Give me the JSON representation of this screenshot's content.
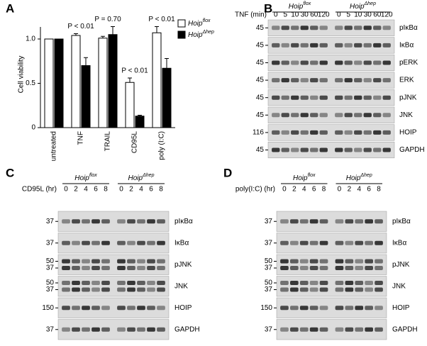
{
  "chart_data": {
    "type": "bar",
    "panel": "A",
    "y_label": "Cell viability",
    "categories": [
      "untreated",
      "TNF",
      "TRAIL",
      "CD95L",
      "poly (I:C)"
    ],
    "series": [
      {
        "name": "Hoip",
        "name_sup": "flox",
        "color": "#ffffff",
        "values": [
          1.0,
          1.04,
          1.01,
          0.51,
          1.07
        ],
        "errors": [
          null,
          0.02,
          0.02,
          0.05,
          0.07
        ]
      },
      {
        "name": "Hoip",
        "name_sup": "Δhep",
        "color": "#000000",
        "values": [
          1.0,
          0.7,
          1.05,
          0.13,
          0.67
        ],
        "errors": [
          null,
          0.09,
          0.09,
          0.01,
          0.11
        ]
      }
    ],
    "annotations": [
      null,
      "P < 0.01",
      "P = 0.70",
      "P < 0.01",
      "P < 0.01"
    ],
    "ylim": [
      0,
      1.2
    ],
    "yticks": [
      0,
      0.5,
      {
        "value": 1,
        "label": "1.0"
      }
    ]
  },
  "blots": [
    {
      "label": "B",
      "treatment": "TNF (min)",
      "groups": [
        {
          "name": "Hoip",
          "sup": "flox",
          "lanes": [
            "0",
            "5",
            "10",
            "30",
            "60",
            "120"
          ]
        },
        {
          "name": "Hoip",
          "sup": "Δhep",
          "lanes": [
            "0",
            "5",
            "10",
            "30",
            "60",
            "120"
          ]
        }
      ],
      "rows": [
        {
          "label": "pIκBα",
          "markers": [
            "45"
          ]
        },
        {
          "label": "IκBα",
          "markers": [
            "45"
          ]
        },
        {
          "label": "pERK",
          "markers": [
            "45"
          ]
        },
        {
          "label": "ERK",
          "markers": [
            "45"
          ]
        },
        {
          "label": "pJNK",
          "markers": [
            "45"
          ]
        },
        {
          "label": "JNK",
          "markers": [
            "45"
          ]
        },
        {
          "label": "HOIP",
          "markers": [
            "116"
          ]
        },
        {
          "label": "GAPDH",
          "markers": [
            "45"
          ]
        }
      ]
    },
    {
      "label": "C",
      "treatment": "CD95L (hr)",
      "groups": [
        {
          "name": "Hoip",
          "sup": "flox",
          "lanes": [
            "0",
            "2",
            "4",
            "6",
            "8"
          ]
        },
        {
          "name": "Hoip",
          "sup": "Δhep",
          "lanes": [
            "0",
            "2",
            "4",
            "6",
            "8"
          ]
        }
      ],
      "rows": [
        {
          "label": "pIκBα",
          "markers": [
            "37"
          ]
        },
        {
          "label": "IκBα",
          "markers": [
            "37"
          ]
        },
        {
          "label": "pJNK",
          "markers": [
            "50",
            "37"
          ]
        },
        {
          "label": "JNK",
          "markers": [
            "50",
            "37"
          ]
        },
        {
          "label": "HOIP",
          "markers": [
            "150"
          ]
        },
        {
          "label": "GAPDH",
          "markers": [
            "37"
          ]
        }
      ]
    },
    {
      "label": "D",
      "treatment": "poly(I:C) (hr)",
      "groups": [
        {
          "name": "Hoip",
          "sup": "flox",
          "lanes": [
            "0",
            "2",
            "4",
            "6",
            "8"
          ]
        },
        {
          "name": "Hoip",
          "sup": "Δhep",
          "lanes": [
            "0",
            "2",
            "4",
            "6",
            "8"
          ]
        }
      ],
      "rows": [
        {
          "label": "pIκBα",
          "markers": [
            "37"
          ]
        },
        {
          "label": "IκBα",
          "markers": [
            "37"
          ]
        },
        {
          "label": "pJNK",
          "markers": [
            "50",
            "37"
          ]
        },
        {
          "label": "JNK",
          "markers": [
            "50",
            "37"
          ]
        },
        {
          "label": "HOIP",
          "markers": [
            "150"
          ]
        },
        {
          "label": "GAPDH",
          "markers": [
            "37"
          ]
        }
      ]
    }
  ]
}
